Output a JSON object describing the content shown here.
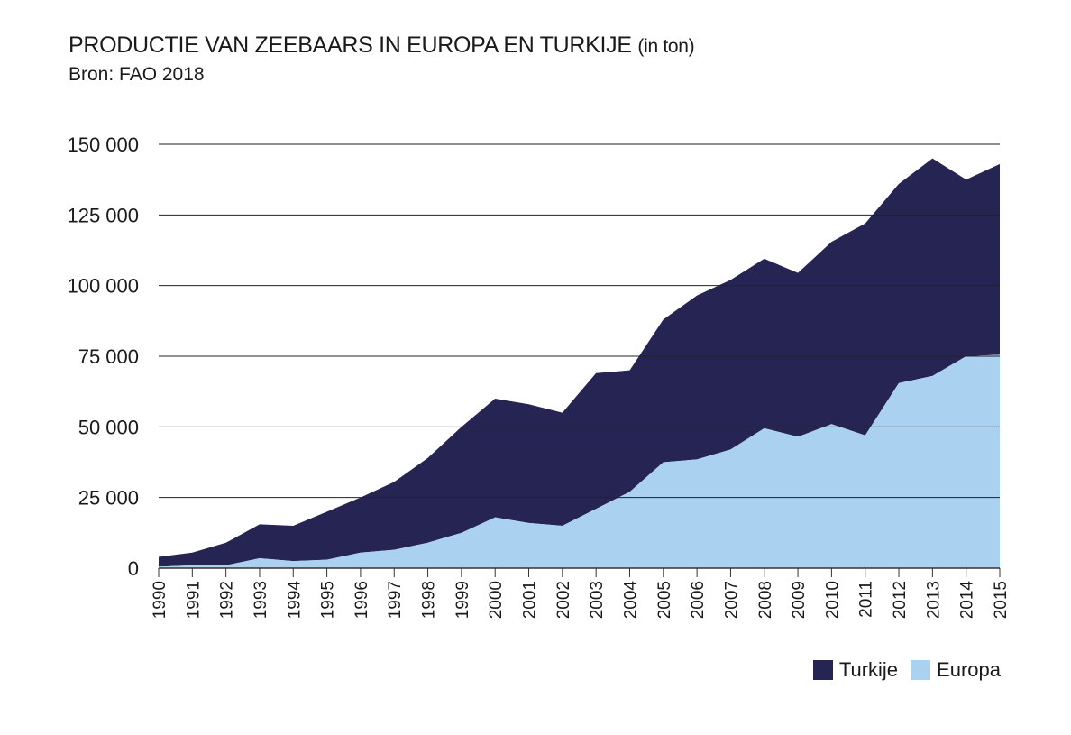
{
  "header": {
    "title": "PRODUCTIE VAN ZEEBAARS IN EUROPA EN TURKIJE",
    "title_unit": "(in ton)",
    "source": "Bron: FAO 2018"
  },
  "colors": {
    "turkije": "#252453",
    "europa": "#abd1f0",
    "grid": "#222222"
  },
  "legend": [
    {
      "label": "Turkije",
      "color": "#252453"
    },
    {
      "label": "Europa",
      "color": "#abd1f0"
    }
  ],
  "chart_data": {
    "type": "area",
    "stacked": true,
    "title": "PRODUCTIE VAN ZEEBAARS IN EUROPA EN TURKIJE",
    "categories": [
      "1990",
      "1991",
      "1992",
      "1993",
      "1994",
      "1995",
      "1996",
      "1997",
      "1998",
      "1999",
      "2000",
      "2001",
      "2002",
      "2003",
      "2004",
      "2005",
      "2006",
      "2007",
      "2008",
      "2009",
      "2010",
      "2011",
      "2012",
      "2013",
      "2014",
      "2015"
    ],
    "series": [
      {
        "name": "Europa",
        "color": "#abd1f0",
        "values": [
          500,
          1000,
          1000,
          3500,
          2500,
          3000,
          5500,
          6500,
          9000,
          12500,
          18000,
          16000,
          15000,
          21000,
          27000,
          37500,
          38500,
          42000,
          49500,
          46500,
          51000,
          47000,
          65500,
          68000,
          75000,
          75500
        ]
      },
      {
        "name": "Turkije",
        "color": "#252453",
        "values": [
          3500,
          4500,
          8000,
          12000,
          12500,
          17000,
          19500,
          24000,
          30000,
          37500,
          42000,
          42000,
          40000,
          48000,
          43000,
          50500,
          58000,
          60000,
          60000,
          58000,
          64500,
          75000,
          70500,
          77000,
          62500,
          67500
        ]
      }
    ],
    "yticks": [
      "150 000",
      "125 000",
      "100 000",
      "75 000",
      "50 000",
      "25 000",
      "0"
    ],
    "ytick_values": [
      150000,
      125000,
      100000,
      75000,
      50000,
      25000,
      0
    ],
    "ylim": [
      0,
      150000
    ],
    "grid": "horizontal",
    "legend_position": "bottom-right"
  }
}
